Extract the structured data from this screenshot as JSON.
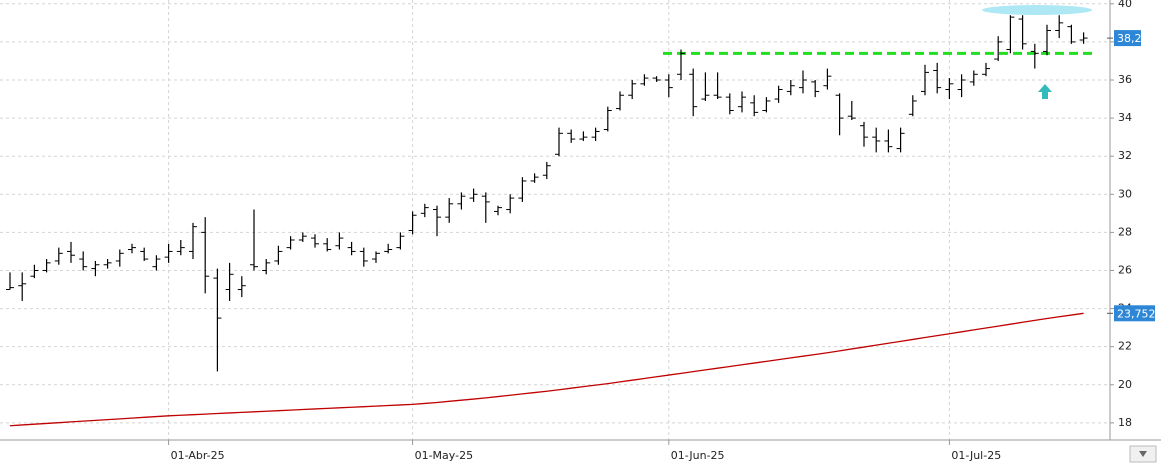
{
  "chart_data": {
    "type": "ohlc",
    "categories": [
      null,
      null,
      null,
      null,
      null,
      null,
      null,
      null,
      null,
      null,
      null,
      null,
      null,
      "01-Abr-25",
      null,
      null,
      null,
      null,
      null,
      null,
      null,
      null,
      null,
      null,
      null,
      null,
      null,
      null,
      null,
      null,
      null,
      null,
      null,
      "01-May-25",
      null,
      null,
      null,
      null,
      null,
      null,
      null,
      null,
      null,
      null,
      null,
      null,
      null,
      null,
      null,
      null,
      null,
      null,
      null,
      null,
      "01-Jun-25",
      null,
      null,
      null,
      null,
      null,
      null,
      null,
      null,
      null,
      null,
      null,
      null,
      null,
      null,
      null,
      null,
      null,
      null,
      null,
      null,
      null,
      null,
      "01-Jul-25",
      null,
      null,
      null,
      null,
      null,
      null,
      null,
      null,
      null,
      null,
      null,
      null
    ],
    "ohlc": {
      "color": "#000000",
      "open": [
        25.0,
        25.2,
        25.7,
        26.0,
        26.5,
        27.0,
        26.6,
        26.1,
        26.3,
        26.5,
        27.1,
        27.0,
        26.2,
        26.7,
        27.0,
        27.0,
        28.0,
        25.6,
        25.0,
        25.0,
        26.3,
        26.0,
        26.5,
        27.2,
        27.6,
        27.7,
        27.4,
        27.3,
        27.2,
        27.0,
        26.6,
        27.0,
        27.2,
        28.1,
        29.0,
        29.2,
        28.8,
        29.5,
        29.8,
        29.9,
        29.1,
        29.2,
        29.8,
        30.7,
        31.0,
        32.1,
        33.2,
        32.9,
        33.0,
        33.4,
        34.5,
        35.2,
        35.8,
        36.1,
        36.0,
        36.3,
        36.3,
        35.0,
        35.2,
        35.1,
        34.6,
        34.8,
        34.4,
        35.0,
        35.4,
        35.6,
        35.9,
        35.7,
        35.2,
        34.1,
        33.6,
        33.0,
        32.8,
        32.4,
        34.2,
        35.4,
        36.5,
        35.5,
        35.5,
        35.9,
        36.3,
        37.1,
        37.6,
        39.2,
        37.5,
        37.5,
        38.6,
        38.8,
        38.1
      ],
      "high": [
        25.9,
        25.9,
        26.3,
        26.6,
        27.2,
        27.5,
        27.0,
        26.5,
        26.6,
        27.1,
        27.4,
        27.2,
        26.8,
        27.4,
        27.6,
        28.5,
        28.8,
        26.1,
        26.4,
        25.7,
        29.2,
        26.6,
        27.3,
        27.8,
        28.0,
        27.9,
        27.7,
        28.0,
        27.5,
        27.2,
        27.0,
        27.4,
        28.0,
        29.1,
        29.5,
        29.4,
        29.8,
        30.1,
        30.3,
        30.1,
        29.4,
        30.0,
        30.9,
        31.1,
        31.7,
        33.5,
        33.4,
        33.3,
        33.5,
        34.6,
        35.4,
        36.0,
        36.3,
        36.2,
        36.3,
        37.6,
        36.6,
        36.4,
        36.4,
        35.3,
        35.4,
        35.2,
        35.1,
        35.7,
        36.0,
        36.5,
        36.0,
        36.6,
        35.3,
        34.9,
        33.8,
        33.5,
        33.4,
        33.5,
        35.2,
        36.8,
        36.9,
        36.1,
        36.3,
        36.5,
        36.9,
        38.3,
        39.4,
        39.4,
        37.9,
        38.9,
        39.4,
        38.9,
        38.5
      ],
      "low": [
        25.0,
        24.4,
        25.6,
        25.9,
        26.3,
        26.4,
        26.0,
        25.7,
        26.1,
        26.2,
        26.9,
        26.5,
        26.0,
        26.4,
        26.8,
        26.6,
        24.8,
        20.7,
        24.4,
        24.6,
        26.0,
        25.8,
        26.3,
        27.1,
        27.5,
        27.2,
        27.0,
        27.1,
        26.8,
        26.2,
        26.4,
        26.9,
        27.1,
        27.9,
        28.8,
        27.8,
        28.5,
        29.2,
        29.6,
        28.5,
        28.9,
        29.0,
        29.6,
        30.6,
        30.8,
        32.0,
        32.7,
        32.8,
        32.8,
        33.3,
        34.4,
        35.0,
        35.7,
        35.9,
        35.1,
        36.0,
        34.1,
        34.9,
        35.0,
        34.2,
        34.3,
        34.1,
        34.3,
        34.8,
        35.2,
        35.3,
        35.1,
        35.5,
        33.1,
        33.9,
        32.5,
        32.2,
        32.2,
        32.2,
        34.1,
        35.2,
        35.3,
        35.0,
        35.1,
        35.7,
        36.2,
        37.0,
        37.4,
        37.6,
        36.6,
        37.3,
        38.2,
        37.9,
        37.9
      ],
      "close": [
        25.1,
        25.3,
        26.0,
        26.4,
        26.9,
        26.8,
        26.2,
        26.3,
        26.4,
        26.9,
        27.2,
        26.6,
        26.6,
        27.0,
        27.2,
        28.3,
        25.7,
        23.5,
        25.8,
        25.2,
        26.2,
        26.4,
        27.0,
        27.6,
        27.8,
        27.4,
        27.1,
        27.7,
        27.0,
        26.5,
        26.9,
        27.1,
        27.8,
        28.9,
        29.3,
        28.8,
        29.5,
        29.9,
        30.0,
        29.6,
        29.3,
        29.8,
        30.7,
        30.9,
        31.5,
        33.2,
        32.9,
        33.0,
        33.3,
        34.4,
        35.2,
        35.8,
        36.1,
        36.0,
        35.6,
        37.4,
        34.6,
        35.2,
        35.1,
        34.4,
        35.1,
        34.3,
        34.9,
        35.5,
        35.7,
        36.0,
        35.4,
        36.2,
        34.0,
        34.0,
        33.0,
        32.8,
        32.5,
        33.2,
        34.9,
        36.4,
        35.6,
        35.8,
        36.0,
        36.3,
        36.6,
        38.0,
        39.3,
        37.9,
        37.4,
        38.6,
        39.0,
        38.0,
        38.2
      ],
      "last_label": "38,2"
    },
    "ma": {
      "color": "#c00000",
      "values": [
        17.85,
        17.89,
        17.93,
        17.97,
        18.01,
        18.05,
        18.09,
        18.13,
        18.17,
        18.21,
        18.25,
        18.29,
        18.33,
        18.37,
        18.4,
        18.43,
        18.46,
        18.49,
        18.52,
        18.55,
        18.58,
        18.61,
        18.64,
        18.67,
        18.7,
        18.73,
        18.76,
        18.79,
        18.82,
        18.85,
        18.88,
        18.91,
        18.94,
        18.97,
        19.02,
        19.07,
        19.13,
        19.19,
        19.25,
        19.31,
        19.38,
        19.45,
        19.52,
        19.59,
        19.66,
        19.74,
        19.82,
        19.9,
        19.98,
        20.06,
        20.15,
        20.24,
        20.33,
        20.42,
        20.51,
        20.6,
        20.69,
        20.78,
        20.87,
        20.96,
        21.05,
        21.14,
        21.23,
        21.32,
        21.41,
        21.5,
        21.59,
        21.68,
        21.78,
        21.88,
        21.98,
        22.08,
        22.18,
        22.28,
        22.38,
        22.48,
        22.58,
        22.68,
        22.78,
        22.88,
        22.98,
        23.08,
        23.18,
        23.28,
        23.38,
        23.48,
        23.57,
        23.66,
        23.752
      ],
      "last_label": "23,752"
    },
    "hline": {
      "value": 37.4,
      "color": "#22dd22"
    },
    "ylim": [
      17.1,
      40.2
    ],
    "yticks": [
      18,
      20,
      22,
      24,
      26,
      28,
      30,
      32,
      34,
      36,
      38,
      40
    ],
    "grid": true
  }
}
